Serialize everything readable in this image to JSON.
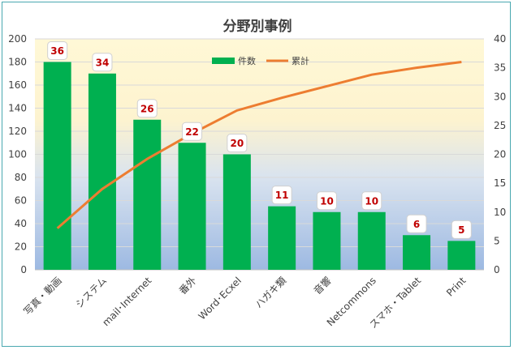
{
  "chart_data": {
    "type": "bar",
    "title": "分野別事例",
    "categories": [
      "写真・動画",
      "システム",
      "mail･Internet",
      "番外",
      "Word･Ecxel",
      "ハガキ類",
      "音響",
      "Netcommons",
      "スマホ・Tablet",
      "Print"
    ],
    "series": [
      {
        "name": "件数",
        "type": "bar",
        "axis": "left",
        "values": [
          180,
          170,
          130,
          110,
          100,
          55,
          50,
          50,
          30,
          25
        ],
        "labels": [
          "36",
          "34",
          "26",
          "22",
          "20",
          "11",
          "10",
          "10",
          "6",
          "5"
        ]
      },
      {
        "name": "累計",
        "type": "line",
        "axis": "right",
        "values": [
          7.2,
          14,
          19.2,
          23.6,
          27.6,
          29.8,
          31.8,
          33.8,
          35,
          36
        ]
      }
    ],
    "y_left": {
      "min": 0,
      "max": 200,
      "step": 20
    },
    "y_right": {
      "min": 0,
      "max": 40,
      "step": 5
    },
    "grid": true,
    "legend": "top-center",
    "colors": {
      "bar": "#00b050",
      "line": "#ed7d31",
      "label_text": "#c00000",
      "frame": "#4aa8b0"
    }
  }
}
